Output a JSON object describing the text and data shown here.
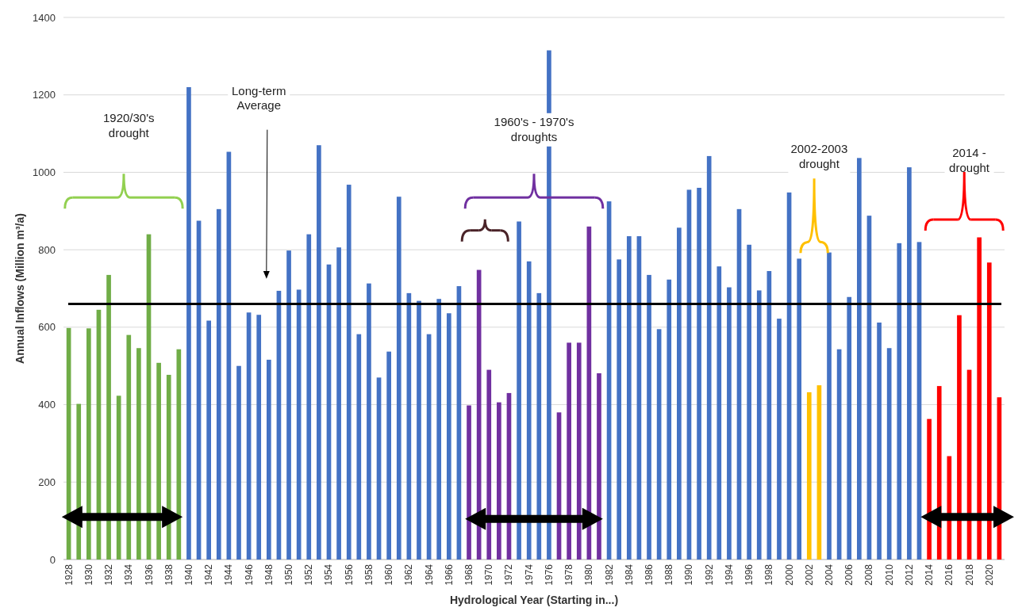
{
  "chart_data": {
    "type": "bar",
    "xlabel": "Hydrological Year (Starting in...)",
    "ylabel": "Annual Inflows (Million m³/a)",
    "categories": [
      "1928",
      null,
      "1930",
      null,
      "1932",
      null,
      "1934",
      null,
      "1936",
      null,
      "1938",
      null,
      "1940",
      null,
      "1942",
      null,
      "1944",
      null,
      "1946",
      null,
      "1948",
      null,
      "1950",
      null,
      "1952",
      null,
      "1954",
      null,
      "1956",
      null,
      "1958",
      null,
      "1960",
      null,
      "1962",
      null,
      "1964",
      null,
      "1966",
      null,
      "1968",
      null,
      "1970",
      null,
      "1972",
      null,
      "1974",
      null,
      "1976",
      null,
      "1978",
      null,
      "1980",
      null,
      "1982",
      null,
      "1984",
      null,
      "1986",
      null,
      "1988",
      null,
      "1990",
      null,
      "1992",
      null,
      "1994",
      null,
      "1996",
      null,
      "1998",
      null,
      "2000",
      null,
      "2002",
      null,
      "2004",
      null,
      "2006",
      null,
      "2008",
      null,
      "2010",
      null,
      "2012",
      null,
      "2014",
      null,
      "2016",
      null,
      "2018",
      null,
      "2020",
      null
    ],
    "values": [
      598,
      402,
      597,
      645,
      735,
      423,
      580,
      546,
      840,
      508,
      477,
      543,
      1220,
      875,
      617,
      905,
      1053,
      500,
      638,
      632,
      516,
      694,
      798,
      697,
      840,
      1070,
      762,
      806,
      968,
      582,
      713,
      470,
      537,
      937,
      688,
      668,
      582,
      673,
      636,
      706,
      398,
      748,
      490,
      406,
      430,
      873,
      770,
      688,
      1315,
      380,
      560,
      560,
      860,
      481,
      925,
      775,
      835,
      835,
      735,
      595,
      723,
      857,
      955,
      960,
      1042,
      757,
      703,
      905,
      813,
      695,
      745,
      622,
      948,
      777,
      432,
      450,
      793,
      543,
      678,
      1037,
      888,
      612,
      546,
      817,
      1013,
      820,
      363,
      448,
      267,
      631,
      490,
      832,
      767,
      419
    ],
    "colors": [
      "#70ad47",
      "#70ad47",
      "#70ad47",
      "#70ad47",
      "#70ad47",
      "#70ad47",
      "#70ad47",
      "#70ad47",
      "#70ad47",
      "#70ad47",
      "#70ad47",
      "#70ad47",
      "#4472c4",
      "#4472c4",
      "#4472c4",
      "#4472c4",
      "#4472c4",
      "#4472c4",
      "#4472c4",
      "#4472c4",
      "#4472c4",
      "#4472c4",
      "#4472c4",
      "#4472c4",
      "#4472c4",
      "#4472c4",
      "#4472c4",
      "#4472c4",
      "#4472c4",
      "#4472c4",
      "#4472c4",
      "#4472c4",
      "#4472c4",
      "#4472c4",
      "#4472c4",
      "#4472c4",
      "#4472c4",
      "#4472c4",
      "#4472c4",
      "#4472c4",
      "#7030a0",
      "#7030a0",
      "#7030a0",
      "#7030a0",
      "#7030a0",
      "#4472c4",
      "#4472c4",
      "#4472c4",
      "#4472c4",
      "#7030a0",
      "#7030a0",
      "#7030a0",
      "#7030a0",
      "#7030a0",
      "#4472c4",
      "#4472c4",
      "#4472c4",
      "#4472c4",
      "#4472c4",
      "#4472c4",
      "#4472c4",
      "#4472c4",
      "#4472c4",
      "#4472c4",
      "#4472c4",
      "#4472c4",
      "#4472c4",
      "#4472c4",
      "#4472c4",
      "#4472c4",
      "#4472c4",
      "#4472c4",
      "#4472c4",
      "#4472c4",
      "#ffc000",
      "#ffc000",
      "#4472c4",
      "#4472c4",
      "#4472c4",
      "#4472c4",
      "#4472c4",
      "#4472c4",
      "#4472c4",
      "#4472c4",
      "#4472c4",
      "#4472c4",
      "#ff0000",
      "#ff0000",
      "#ff0000",
      "#ff0000",
      "#ff0000",
      "#ff0000",
      "#ff0000",
      "#ff0000"
    ],
    "ylim": [
      0,
      1400
    ],
    "yticks": [
      0,
      200,
      400,
      600,
      800,
      1000,
      1200,
      1400
    ],
    "grid": "y",
    "ref_lines": [
      {
        "axis": "y",
        "value": 660,
        "color": "#000000"
      }
    ],
    "annotations": [
      "1920/30's drought",
      "Long-term Average",
      "1960's - 1970's droughts",
      "2002-2003 drought",
      "2014 - drought"
    ]
  }
}
